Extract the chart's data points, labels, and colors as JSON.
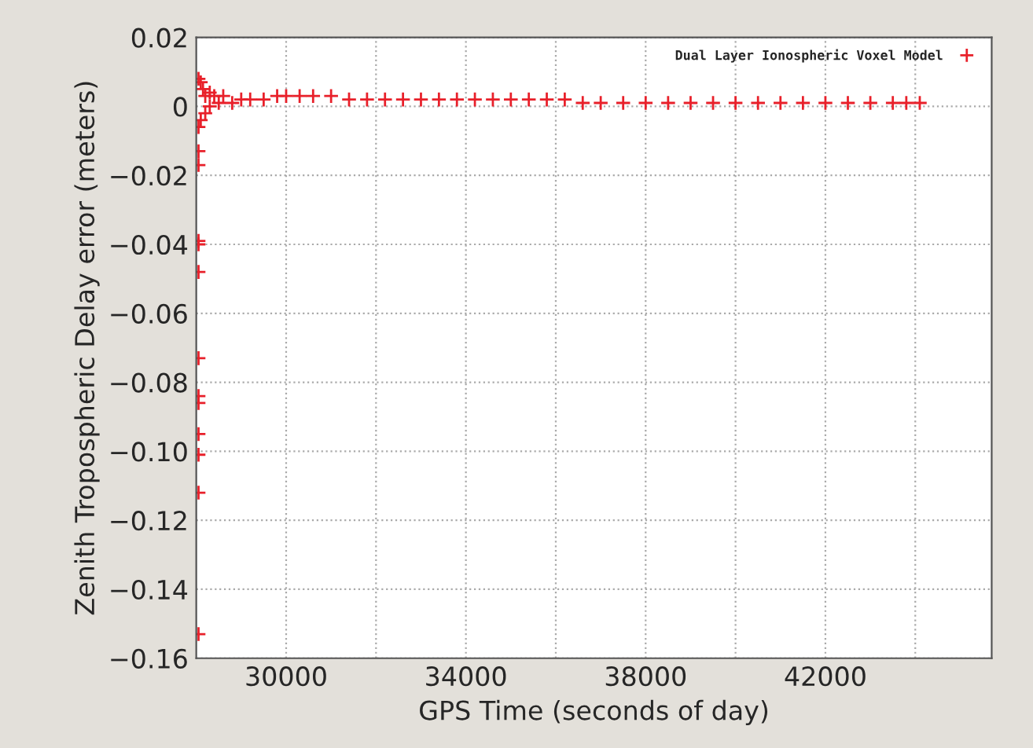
{
  "chart_data": {
    "type": "scatter",
    "xlabel": "GPS Time (seconds of day)",
    "ylabel": "Zenith Tropospheric Delay error (meters)",
    "xlim": [
      28000,
      45700
    ],
    "ylim": [
      -0.16,
      0.02
    ],
    "xticks": [
      30000,
      {
        "value": 32000,
        "label": null
      },
      34000,
      {
        "value": 36000,
        "label": null
      },
      38000,
      {
        "value": 40000,
        "label": null
      },
      42000,
      {
        "value": 44000,
        "label": null
      }
    ],
    "yticks": [
      {
        "value": 0.02,
        "label": "0.02"
      },
      0,
      {
        "value": -0.02,
        "label": "−0.02"
      },
      {
        "value": -0.04,
        "label": "−0.04"
      },
      {
        "value": -0.06,
        "label": "−0.06"
      },
      {
        "value": -0.08,
        "label": "−0.08"
      },
      {
        "value": -0.1,
        "label": "−0.10"
      },
      {
        "value": -0.12,
        "label": "−0.12"
      },
      {
        "value": -0.14,
        "label": "−0.14"
      },
      {
        "value": -0.16,
        "label": "−0.16"
      }
    ],
    "grid": true,
    "legend": "top right",
    "marker": "cross",
    "series": [
      {
        "name": "Dual Layer Ionospheric Voxel Model",
        "color": "#e8202a",
        "x": [
          28050,
          28050,
          28050,
          28050,
          28050,
          28050,
          28050,
          28050,
          28050,
          28050,
          28050,
          28050,
          28050,
          28050,
          28100,
          28100,
          28150,
          28200,
          28200,
          28300,
          28300,
          28400,
          28500,
          28600,
          28800,
          29000,
          29200,
          29500,
          29800,
          30000,
          30300,
          30600,
          31000,
          31400,
          31800,
          32200,
          32600,
          33000,
          33400,
          33800,
          34200,
          34600,
          35000,
          35400,
          35800,
          36200,
          36600,
          37000,
          37500,
          38000,
          38500,
          39000,
          39500,
          40000,
          40500,
          41000,
          41500,
          42000,
          42500,
          43000,
          43500,
          43800,
          44100
        ],
        "values": [
          -0.153,
          -0.112,
          -0.101,
          -0.095,
          -0.086,
          -0.084,
          -0.073,
          -0.048,
          -0.04,
          -0.039,
          -0.017,
          -0.013,
          -0.006,
          0.008,
          0.007,
          -0.004,
          0.005,
          0.003,
          -0.002,
          0.004,
          0.0,
          0.003,
          0.001,
          0.003,
          0.001,
          0.002,
          0.002,
          0.002,
          0.003,
          0.003,
          0.003,
          0.003,
          0.003,
          0.002,
          0.002,
          0.002,
          0.002,
          0.002,
          0.002,
          0.002,
          0.002,
          0.002,
          0.002,
          0.002,
          0.002,
          0.002,
          0.001,
          0.001,
          0.001,
          0.001,
          0.001,
          0.001,
          0.001,
          0.001,
          0.001,
          0.001,
          0.001,
          0.001,
          0.001,
          0.001,
          0.001,
          0.001,
          0.001
        ]
      }
    ]
  }
}
